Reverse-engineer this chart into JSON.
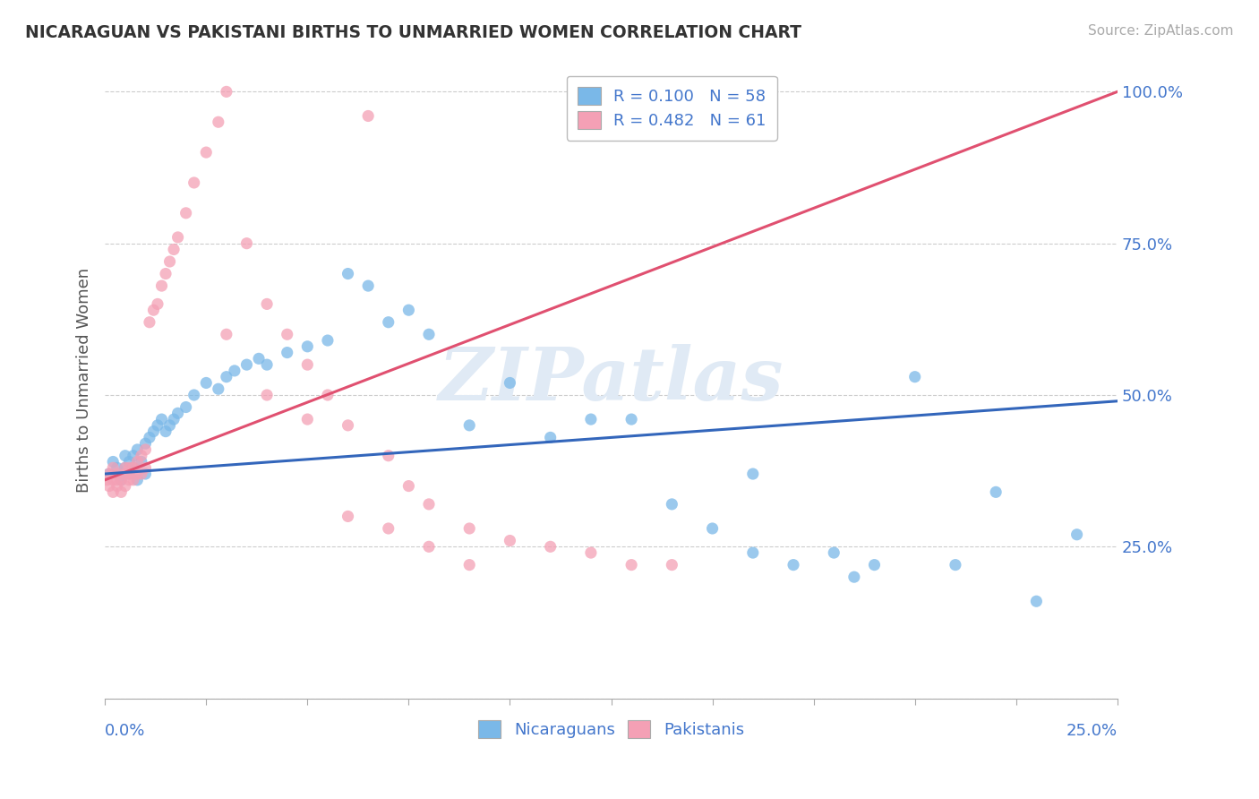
{
  "title": "NICARAGUAN VS PAKISTANI BIRTHS TO UNMARRIED WOMEN CORRELATION CHART",
  "source": "Source: ZipAtlas.com",
  "ylabel": "Births to Unmarried Women",
  "xlim": [
    0.0,
    0.25
  ],
  "ylim": [
    0.0,
    1.05
  ],
  "legend_r1": "R = 0.100",
  "legend_n1": "N = 58",
  "legend_r2": "R = 0.482",
  "legend_n2": "N = 61",
  "blue_color": "#7ab8e8",
  "pink_color": "#f4a0b5",
  "blue_line_color": "#3366bb",
  "pink_line_color": "#e05070",
  "text_color": "#4477cc",
  "watermark_color": "#e0eaf5",
  "blue_scatter_x": [
    0.001,
    0.002,
    0.003,
    0.004,
    0.005,
    0.005,
    0.006,
    0.006,
    0.007,
    0.007,
    0.008,
    0.008,
    0.009,
    0.01,
    0.01,
    0.011,
    0.012,
    0.013,
    0.014,
    0.015,
    0.016,
    0.017,
    0.018,
    0.02,
    0.022,
    0.025,
    0.028,
    0.03,
    0.032,
    0.035,
    0.038,
    0.04,
    0.045,
    0.05,
    0.055,
    0.06,
    0.065,
    0.07,
    0.075,
    0.08,
    0.09,
    0.1,
    0.11,
    0.12,
    0.13,
    0.14,
    0.15,
    0.16,
    0.17,
    0.18,
    0.19,
    0.2,
    0.21,
    0.22,
    0.23,
    0.24,
    0.16,
    0.185
  ],
  "blue_scatter_y": [
    0.37,
    0.39,
    0.38,
    0.36,
    0.4,
    0.38,
    0.37,
    0.39,
    0.38,
    0.4,
    0.36,
    0.41,
    0.39,
    0.37,
    0.42,
    0.43,
    0.44,
    0.45,
    0.46,
    0.44,
    0.45,
    0.46,
    0.47,
    0.48,
    0.5,
    0.52,
    0.51,
    0.53,
    0.54,
    0.55,
    0.56,
    0.55,
    0.57,
    0.58,
    0.59,
    0.7,
    0.68,
    0.62,
    0.64,
    0.6,
    0.45,
    0.52,
    0.43,
    0.46,
    0.46,
    0.32,
    0.28,
    0.24,
    0.22,
    0.24,
    0.22,
    0.53,
    0.22,
    0.34,
    0.16,
    0.27,
    0.37,
    0.2
  ],
  "pink_scatter_x": [
    0.0005,
    0.001,
    0.001,
    0.002,
    0.002,
    0.002,
    0.003,
    0.003,
    0.003,
    0.004,
    0.004,
    0.005,
    0.005,
    0.005,
    0.006,
    0.006,
    0.006,
    0.007,
    0.007,
    0.008,
    0.008,
    0.009,
    0.009,
    0.01,
    0.01,
    0.011,
    0.012,
    0.013,
    0.014,
    0.015,
    0.016,
    0.017,
    0.018,
    0.02,
    0.022,
    0.025,
    0.028,
    0.03,
    0.035,
    0.04,
    0.045,
    0.05,
    0.055,
    0.06,
    0.065,
    0.07,
    0.075,
    0.08,
    0.09,
    0.1,
    0.11,
    0.12,
    0.13,
    0.14,
    0.03,
    0.04,
    0.05,
    0.06,
    0.07,
    0.08,
    0.09
  ],
  "pink_scatter_y": [
    0.36,
    0.35,
    0.37,
    0.36,
    0.34,
    0.38,
    0.35,
    0.37,
    0.36,
    0.34,
    0.36,
    0.35,
    0.37,
    0.38,
    0.36,
    0.37,
    0.38,
    0.36,
    0.38,
    0.37,
    0.39,
    0.37,
    0.4,
    0.38,
    0.41,
    0.62,
    0.64,
    0.65,
    0.68,
    0.7,
    0.72,
    0.74,
    0.76,
    0.8,
    0.85,
    0.9,
    0.95,
    1.0,
    0.75,
    0.65,
    0.6,
    0.55,
    0.5,
    0.45,
    0.96,
    0.4,
    0.35,
    0.32,
    0.28,
    0.26,
    0.25,
    0.24,
    0.22,
    0.22,
    0.6,
    0.5,
    0.46,
    0.3,
    0.28,
    0.25,
    0.22
  ],
  "ytick_values": [
    0.0,
    0.25,
    0.5,
    0.75,
    1.0
  ],
  "ytick_labels": [
    "",
    "25.0%",
    "50.0%",
    "75.0%",
    "100.0%"
  ],
  "n_xticks": 11
}
